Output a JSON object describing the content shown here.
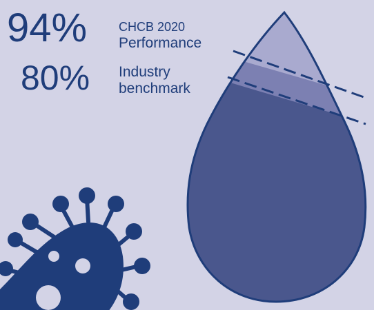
{
  "metrics": [
    {
      "value_text": "94%",
      "value": 94,
      "label_line1": "CHCB 2020",
      "label_line2": "Performance"
    },
    {
      "value_text": "80%",
      "value": 80,
      "label_line1": "Industry",
      "label_line2": "benchmark"
    }
  ],
  "colors": {
    "background": "#d3d3e6",
    "text": "#1f3d7a",
    "drop_fill": "#4a578d",
    "drop_top": "#a9aacf",
    "drop_band": "#7c80b2",
    "virus": "#1f3d7a",
    "virus_spots": "#d3d3e6"
  },
  "icons": [
    "water-drop-icon",
    "virus-icon"
  ]
}
